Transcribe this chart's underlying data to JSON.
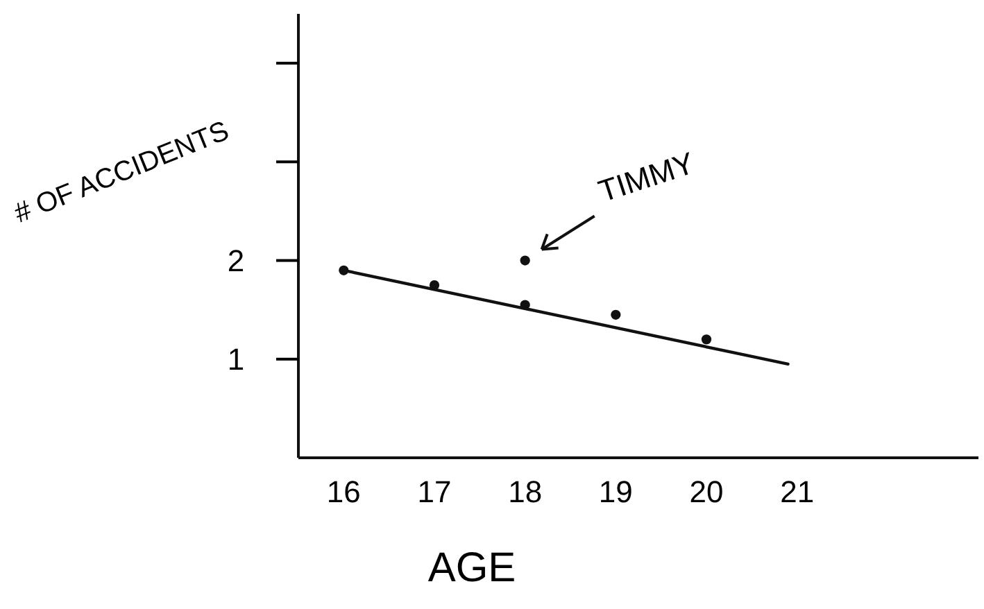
{
  "chart_data": {
    "type": "scatter",
    "xlabel": "AGE",
    "ylabel": "# OF ACCIDENTS",
    "xlim": [
      15.5,
      23
    ],
    "xticks": [
      16,
      17,
      18,
      19,
      20,
      21
    ],
    "ylim": [
      0,
      4.5
    ],
    "yticks": [
      1,
      2,
      {
        "value": 3,
        "label": null
      },
      {
        "value": 4,
        "label": null
      }
    ],
    "grid": false,
    "marker": "circle",
    "series": [
      {
        "color": "#111111",
        "x": [
          16,
          17,
          18,
          19,
          20
        ],
        "values": [
          1.9,
          1.75,
          1.55,
          1.45,
          1.2
        ]
      },
      {
        "color": "#111111",
        "x": [
          18
        ],
        "values": [
          2.0
        ]
      },
      {
        "type": "line",
        "color": "#111111",
        "x": [
          16,
          20.9
        ],
        "values": [
          1.9,
          0.95
        ],
        "marker": "none",
        "line_style": "solid"
      }
    ],
    "annotations": [
      {
        "text": "TIMMY",
        "x": 18,
        "y": 2.0
      }
    ]
  }
}
